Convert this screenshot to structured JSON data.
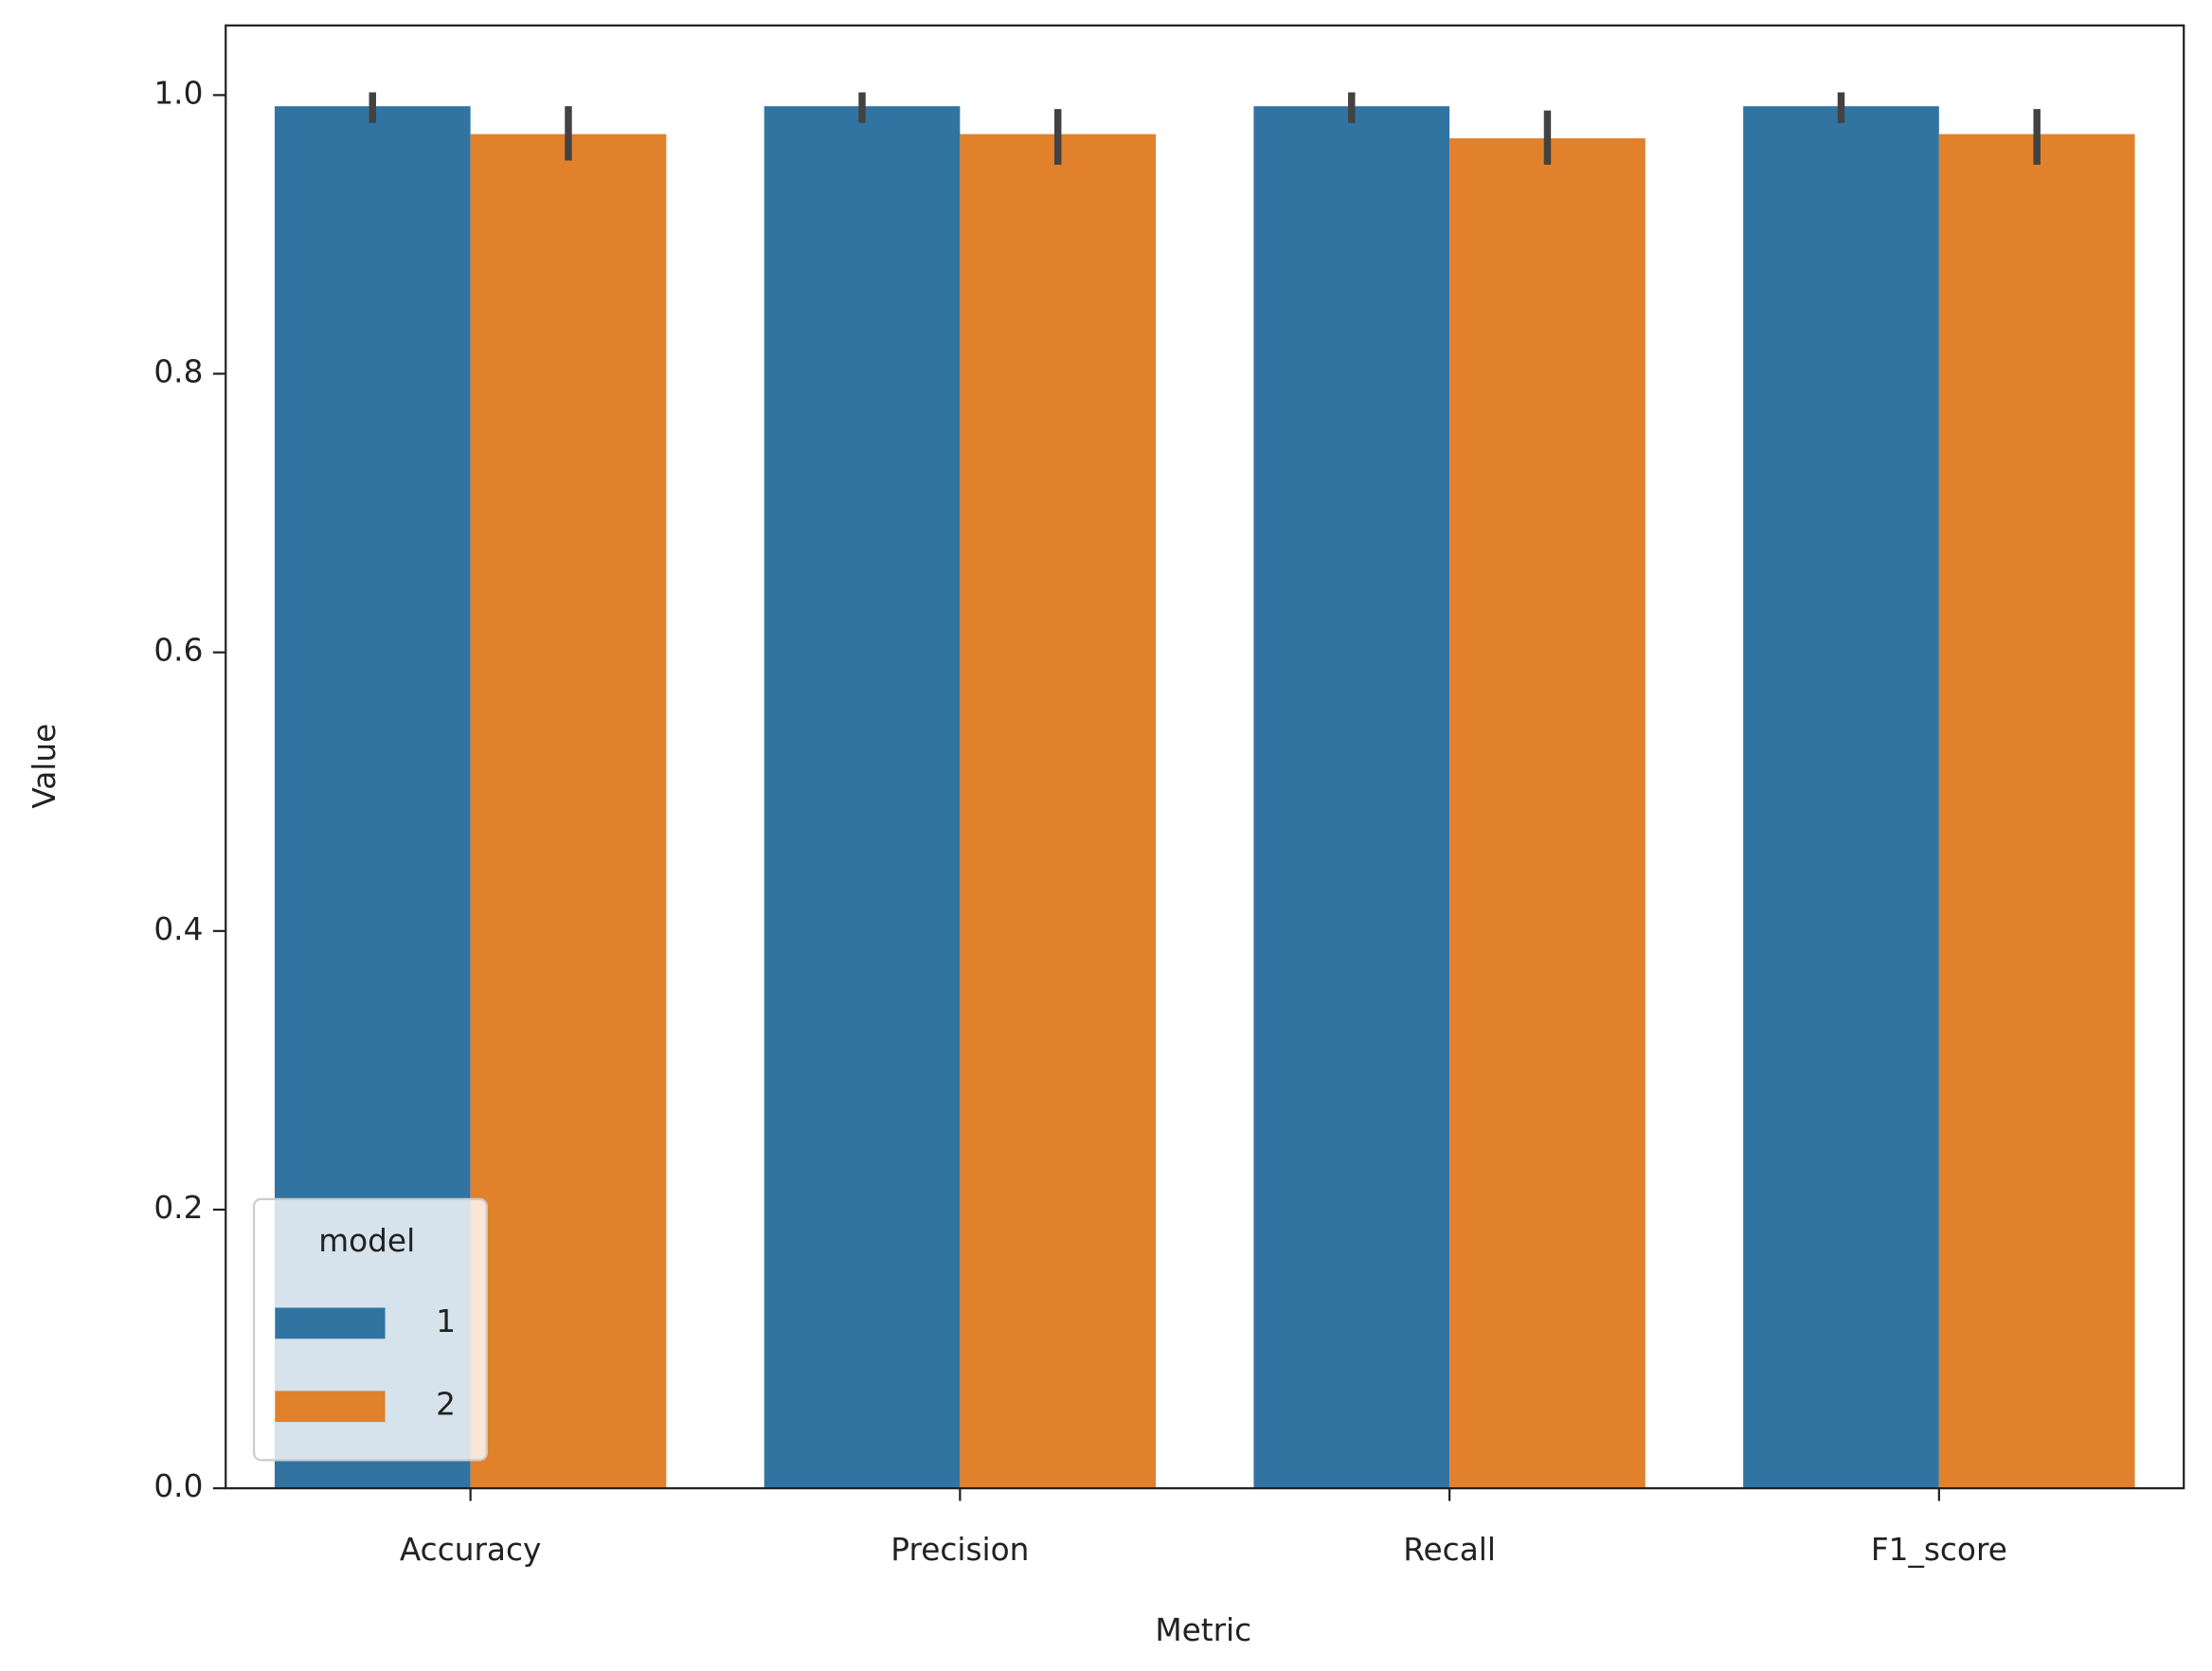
{
  "chart_data": {
    "type": "bar",
    "x_label": "Metric",
    "y_label": "Value",
    "categories": [
      "Accuracy",
      "Precision",
      "Recall",
      "F1_score"
    ],
    "legend_title": "model",
    "legend_position": "lower left",
    "series": [
      {
        "name": "1",
        "color": "#3274a1",
        "values": [
          0.992,
          0.992,
          0.992,
          0.992
        ],
        "error_low": [
          0.98,
          0.98,
          0.98,
          0.98
        ],
        "error_high": [
          1.002,
          1.002,
          1.002,
          1.002
        ]
      },
      {
        "name": "2",
        "color": "#e1812c",
        "values": [
          0.972,
          0.972,
          0.969,
          0.972
        ],
        "error_low": [
          0.953,
          0.95,
          0.95,
          0.95
        ],
        "error_high": [
          0.992,
          0.99,
          0.989,
          0.99
        ]
      }
    ],
    "ylim": [
      0,
      1.05
    ],
    "yticks": [
      {
        "value": 0,
        "label": "0.0"
      },
      {
        "value": 0.2,
        "label": "0.2"
      },
      {
        "value": 0.4,
        "label": "0.4"
      },
      {
        "value": 0.6,
        "label": "0.6"
      },
      {
        "value": 0.8,
        "label": "0.8"
      },
      {
        "value": 1,
        "label": "1.0"
      }
    ],
    "grid": false
  }
}
